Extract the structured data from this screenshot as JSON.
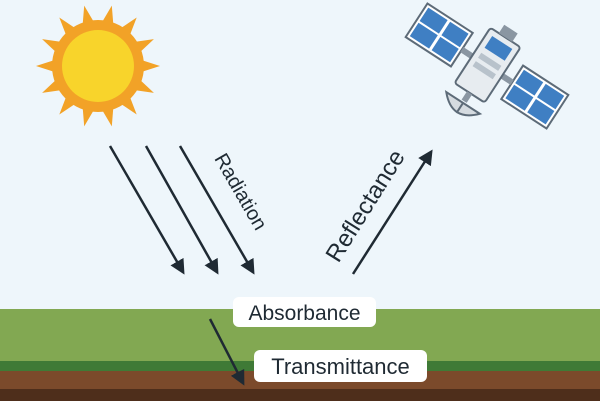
{
  "labels": {
    "radiation": "Radiation",
    "reflectance": "Reflectance",
    "absorbance": "Absorbance",
    "transmittance": "Transmittance"
  },
  "icons": {
    "sun": "sun-icon",
    "satellite": "satellite-icon"
  },
  "colors": {
    "sky": "#eef6fb",
    "grass": "#82a852",
    "grass_dark": "#3f7a36",
    "soil": "#7b4a2b",
    "soil_dark": "#4e2e1b",
    "sun_outer": "#f2a227",
    "sun_inner": "#f8d42b",
    "panel": "#3f7fc3",
    "arrow": "#1f2a33"
  }
}
